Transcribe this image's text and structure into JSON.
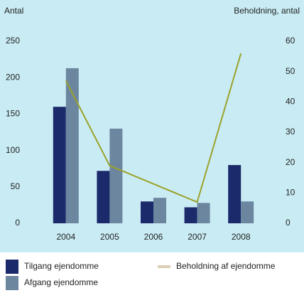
{
  "chart_data": {
    "type": "bar",
    "y_label": "Antal",
    "y2_label": "Beholdning, antal",
    "categories": [
      "2004",
      "2005",
      "2006",
      "2007",
      "2008"
    ],
    "series": [
      {
        "name": "Tilgang ejendomme",
        "color": "#1b2a6b",
        "values": [
          160,
          72,
          30,
          22,
          80
        ]
      },
      {
        "name": "Afgang ejendomme",
        "color": "#6c86a0",
        "values": [
          213,
          130,
          35,
          28,
          30
        ]
      },
      {
        "name": "Beholdning af ejendomme",
        "color": "#9ba22a",
        "legend_color": "#dacfb4",
        "type": "line",
        "axis": "y2",
        "values": [
          47,
          19,
          13,
          7,
          56
        ]
      }
    ],
    "ylim": [
      0,
      250
    ],
    "yticks": [
      0,
      50,
      100,
      150,
      200,
      250
    ],
    "y2lim": [
      0,
      60
    ],
    "y2ticks": [
      0,
      10,
      20,
      30,
      40,
      50,
      60
    ]
  }
}
